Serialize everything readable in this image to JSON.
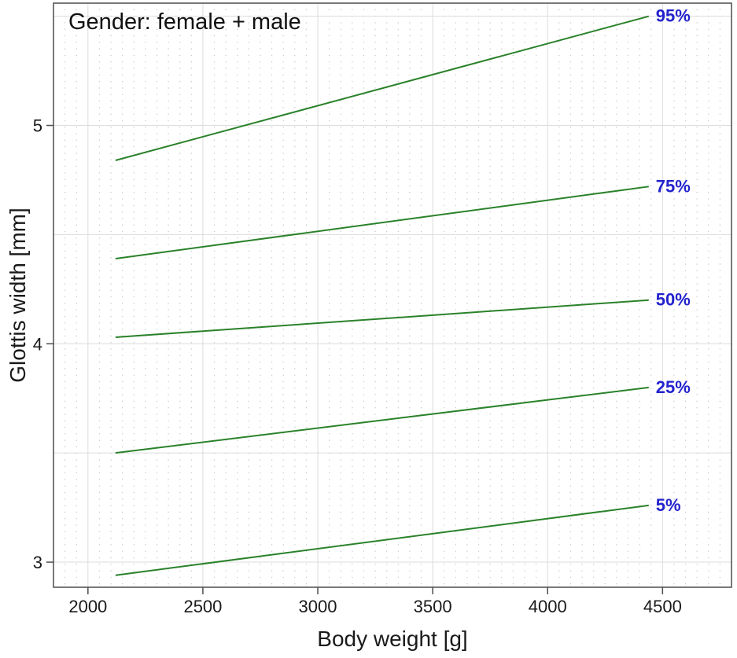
{
  "title": "Gender: female + male",
  "colors": {
    "line": "#2a822a",
    "series_label": "#2323cd",
    "grid_major": "#dcdcdc",
    "grid_minor_dots": "#c9c9c9",
    "axis": "#4d4d4d",
    "text": "#1a1a1a",
    "background": "#ffffff"
  },
  "chart_data": {
    "type": "line",
    "title": "Gender: female + male",
    "xlabel": "Body weight [g]",
    "ylabel": "Glottis width [mm]",
    "xlim": [
      1850,
      4800
    ],
    "ylim": [
      2.885,
      5.56
    ],
    "x_ticks": [
      2000,
      2500,
      3000,
      3500,
      4000,
      4500
    ],
    "y_ticks": [
      3,
      4,
      5
    ],
    "x_minor_step": 50,
    "y_minor_step": 0.5,
    "grid": "on",
    "legend_position": "end-of-line-labels-right",
    "series": [
      {
        "name": "95%",
        "x": [
          2120,
          4440
        ],
        "y": [
          4.84,
          5.5
        ]
      },
      {
        "name": "75%",
        "x": [
          2120,
          4440
        ],
        "y": [
          4.39,
          4.72
        ]
      },
      {
        "name": "50%",
        "x": [
          2120,
          4440
        ],
        "y": [
          4.03,
          4.2
        ]
      },
      {
        "name": "25%",
        "x": [
          2120,
          4440
        ],
        "y": [
          3.5,
          3.8
        ]
      },
      {
        "name": "5%",
        "x": [
          2120,
          4440
        ],
        "y": [
          2.94,
          3.26
        ]
      }
    ]
  }
}
